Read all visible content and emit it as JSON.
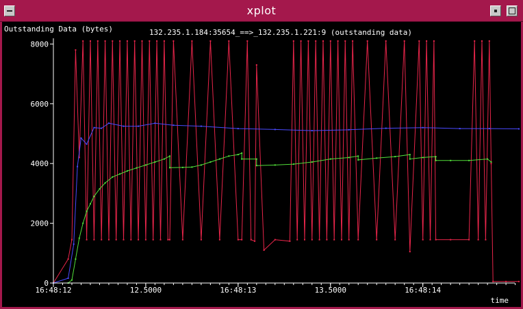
{
  "window": {
    "title": "xplot"
  },
  "chart_data": {
    "type": "line",
    "title": "132.235.1.184:35654_==>_132.235.1.221:9 (outstanding data)",
    "ylabel": "Outstanding Data (bytes)",
    "xlabel": "time",
    "ylim": [
      0,
      8100
    ],
    "xlim": [
      0.0,
      2.52
    ],
    "y_ticks": [
      0,
      2000,
      4000,
      6000,
      8000
    ],
    "x_ticks": [
      {
        "value": 0.0,
        "label": "16:48:12"
      },
      {
        "value": 0.5,
        "label": "12.5000"
      },
      {
        "value": 1.0,
        "label": "16:48:13"
      },
      {
        "value": 1.5,
        "label": "13.5000"
      },
      {
        "value": 2.0,
        "label": "16:48:14"
      }
    ],
    "colors": {
      "outstanding": "#e8254a",
      "avg_window": "#4a4aff",
      "avg_outstanding": "#52e03a",
      "axes": "#ffffff"
    },
    "series": [
      {
        "color": "#4a4aff",
        "x": [
          0.0,
          0.08,
          0.11,
          0.13,
          0.15,
          0.18,
          0.22,
          0.26,
          0.3,
          0.38,
          0.46,
          0.55,
          0.65,
          0.8,
          1.0,
          1.2,
          1.4,
          1.6,
          1.8,
          2.0,
          2.2,
          2.36,
          2.52
        ],
        "y": [
          0,
          160,
          1300,
          3900,
          4850,
          4650,
          5200,
          5180,
          5350,
          5250,
          5250,
          5350,
          5280,
          5250,
          5170,
          5140,
          5100,
          5130,
          5180,
          5200,
          5170,
          5170,
          5160
        ]
      },
      {
        "color": "#52e03a",
        "x": [
          0.08,
          0.1,
          0.12,
          0.14,
          0.16,
          0.18,
          0.2,
          0.22,
          0.25,
          0.28,
          0.32,
          0.36,
          0.4,
          0.45,
          0.5,
          0.55,
          0.6,
          0.63,
          0.63,
          0.7,
          0.75,
          0.8,
          0.85,
          0.9,
          0.95,
          1.0,
          1.02,
          1.02,
          1.1,
          1.1,
          1.2,
          1.3,
          1.4,
          1.5,
          1.6,
          1.65,
          1.65,
          1.75,
          1.85,
          1.93,
          1.93,
          2.0,
          2.07,
          2.07,
          2.15,
          2.25,
          2.35,
          2.37
        ],
        "y": [
          0,
          100,
          800,
          1500,
          2000,
          2400,
          2650,
          2900,
          3150,
          3350,
          3550,
          3650,
          3750,
          3850,
          3950,
          4050,
          4150,
          4250,
          3860,
          3870,
          3880,
          3950,
          4050,
          4150,
          4250,
          4300,
          4350,
          4150,
          4150,
          3930,
          3950,
          3980,
          4050,
          4150,
          4200,
          4250,
          4120,
          4180,
          4230,
          4300,
          4150,
          4200,
          4230,
          4100,
          4100,
          4100,
          4150,
          4050
        ]
      },
      {
        "color": "#e8254a",
        "x": [
          0.0,
          0.08,
          0.1,
          0.12,
          0.14,
          0.16,
          0.18,
          0.2,
          0.22,
          0.24,
          0.26,
          0.28,
          0.3,
          0.32,
          0.34,
          0.36,
          0.38,
          0.4,
          0.42,
          0.44,
          0.46,
          0.48,
          0.5,
          0.52,
          0.54,
          0.56,
          0.58,
          0.6,
          0.62,
          0.63,
          0.65,
          0.7,
          0.75,
          0.8,
          0.85,
          0.9,
          0.95,
          1.0,
          1.02,
          1.05,
          1.07,
          1.09,
          1.1,
          1.14,
          1.2,
          1.28,
          1.3,
          1.32,
          1.34,
          1.36,
          1.38,
          1.4,
          1.42,
          1.44,
          1.46,
          1.48,
          1.5,
          1.52,
          1.54,
          1.56,
          1.58,
          1.6,
          1.62,
          1.65,
          1.7,
          1.75,
          1.8,
          1.85,
          1.9,
          1.93,
          1.98,
          2.0,
          2.02,
          2.04,
          2.06,
          2.07,
          2.15,
          2.25,
          2.28,
          2.3,
          2.32,
          2.34,
          2.36,
          2.37,
          2.38,
          2.45,
          2.52
        ],
        "y": [
          0,
          800,
          1450,
          7800,
          4200,
          8100,
          1450,
          8100,
          1450,
          8100,
          1450,
          8100,
          1450,
          8100,
          1450,
          8100,
          1450,
          8100,
          1450,
          8100,
          1450,
          8100,
          1450,
          8100,
          1450,
          8100,
          1450,
          8100,
          1450,
          1450,
          8100,
          1450,
          8100,
          1450,
          8100,
          1450,
          8100,
          1450,
          1450,
          8100,
          1450,
          1400,
          7300,
          1100,
          1450,
          1400,
          8100,
          1450,
          8100,
          1450,
          8100,
          1450,
          8100,
          1450,
          8100,
          1450,
          8100,
          1450,
          8100,
          1450,
          8100,
          1450,
          8100,
          1450,
          8100,
          1450,
          8100,
          1450,
          8100,
          1050,
          8100,
          1450,
          8100,
          1450,
          8100,
          1450,
          1450,
          1450,
          8100,
          1450,
          8100,
          1450,
          8100,
          4000,
          50,
          50,
          50
        ]
      }
    ]
  }
}
